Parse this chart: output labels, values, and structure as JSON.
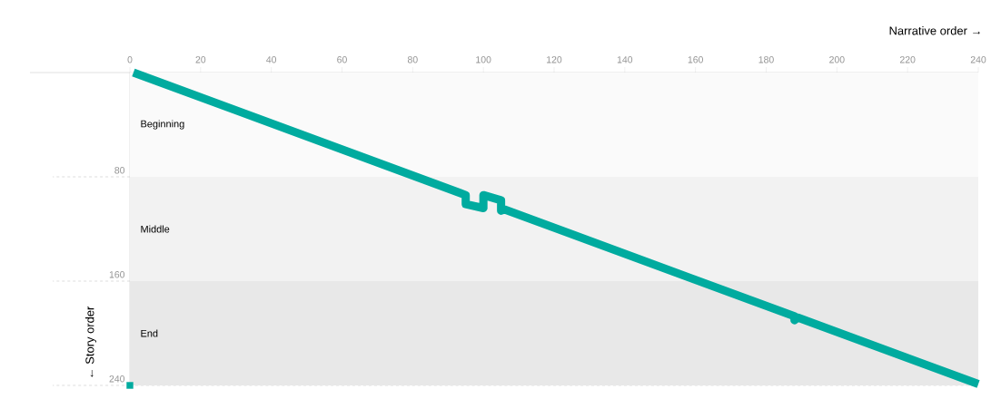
{
  "chart_data": {
    "type": "line",
    "xlabel": "Narrative order →",
    "ylabel": "← Story order",
    "xlim": [
      0,
      240
    ],
    "ylim": [
      240,
      0
    ],
    "xticks": [
      0,
      20,
      40,
      60,
      80,
      100,
      120,
      140,
      160,
      180,
      200,
      220,
      240
    ],
    "yticks": [
      80,
      160,
      240
    ],
    "grid": "y",
    "line_style": "solid",
    "bands": [
      {
        "axis": "y",
        "from": 0,
        "to": 80,
        "label": "Beginning",
        "color": "#fafafa"
      },
      {
        "axis": "y",
        "from": 80,
        "to": 160,
        "label": "Middle",
        "color": "#f2f2f2"
      },
      {
        "axis": "y",
        "from": 160,
        "to": 240,
        "label": "End",
        "color": "#e8e8e8"
      }
    ],
    "series": [
      {
        "color": "#00ab9f",
        "x": [
          1,
          95,
          95,
          100,
          100,
          105,
          105,
          106,
          188,
          188,
          189,
          240
        ],
        "values": [
          0,
          94,
          101,
          104,
          94,
          98,
          106,
          105,
          187,
          190,
          188,
          239
        ]
      },
      {
        "type": "scatter",
        "marker": "square",
        "color": "#00ab9f",
        "x": [
          0
        ],
        "values": [
          240
        ]
      }
    ]
  }
}
